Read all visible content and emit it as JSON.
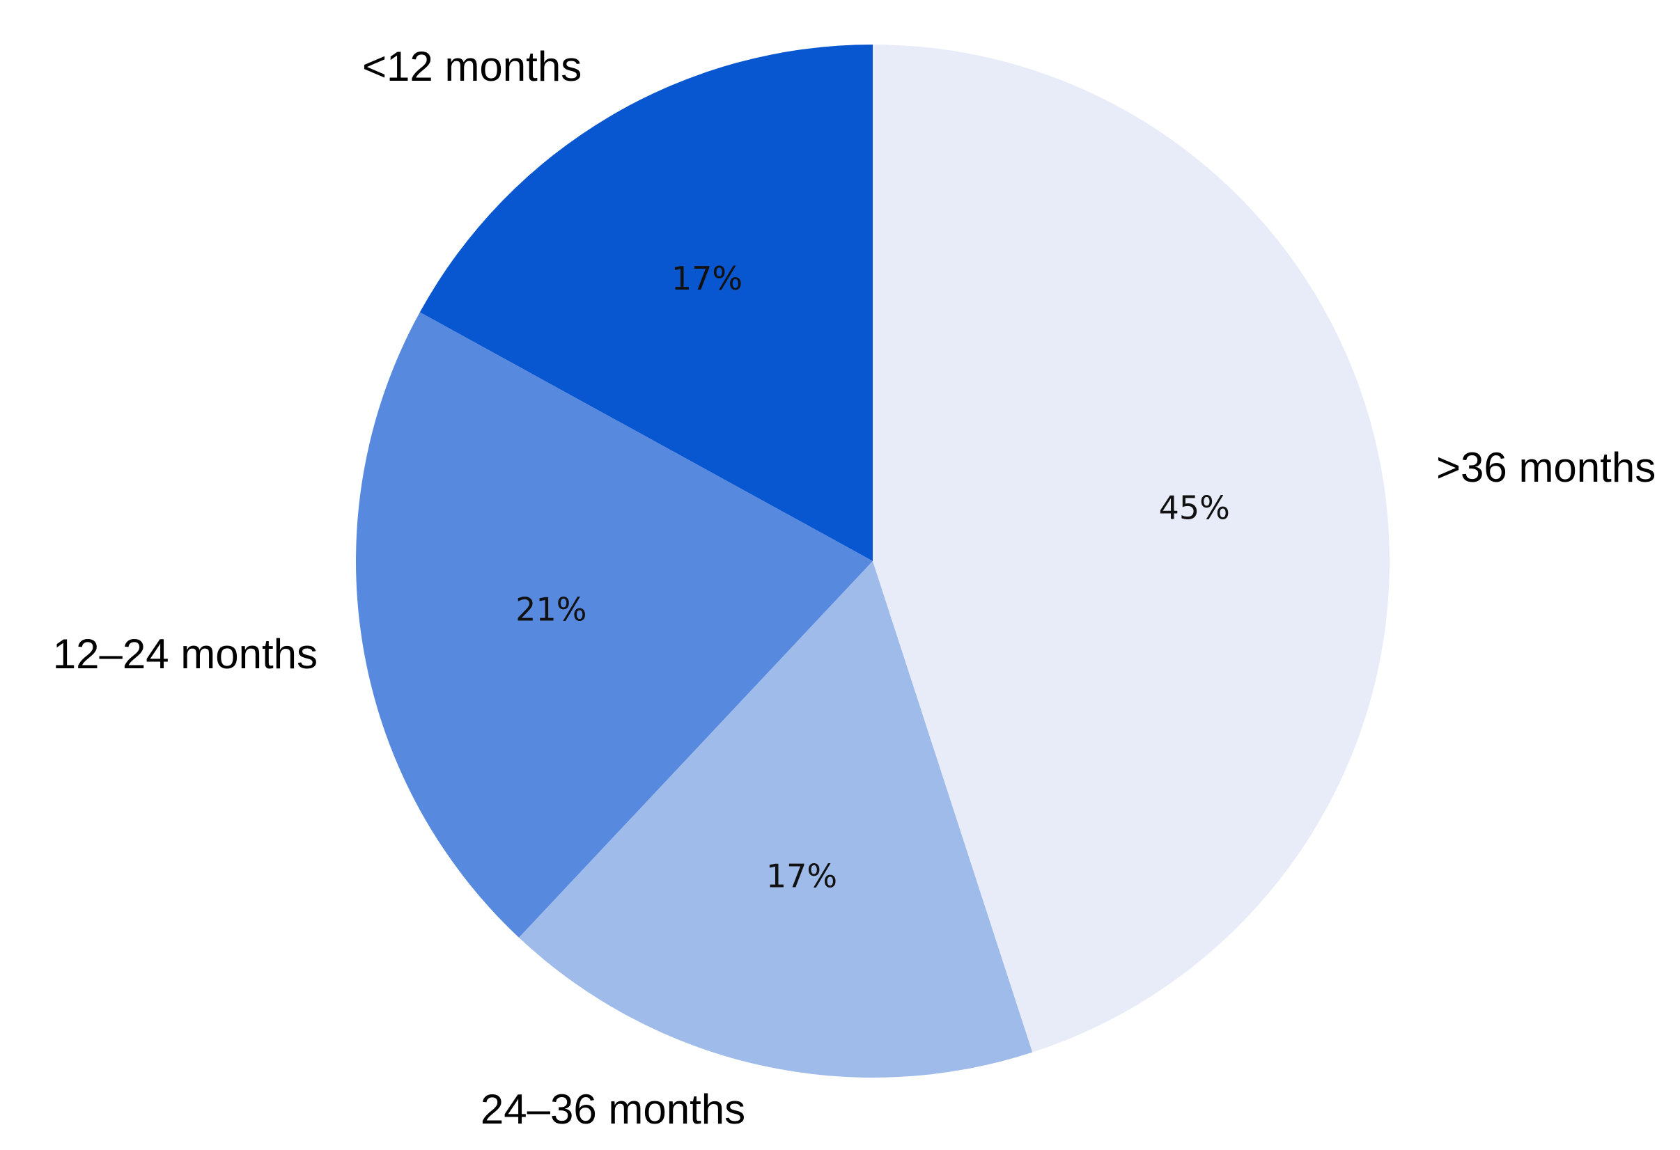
{
  "chart_data": {
    "type": "pie",
    "categories": [
      "<12 months",
      "12–24 months",
      "24–36 months",
      ">36 months"
    ],
    "values": [
      17,
      21,
      17,
      45
    ],
    "value_labels": [
      "17%",
      "21%",
      "17%",
      "45%"
    ],
    "colors": [
      "#0957D0",
      "#5789DE",
      "#9FBBEA",
      "#E7ECF8"
    ],
    "start": "12 o'clock",
    "direction": "counterclockwise",
    "legend": "none",
    "title": "",
    "xlabel": "",
    "ylabel": ""
  }
}
